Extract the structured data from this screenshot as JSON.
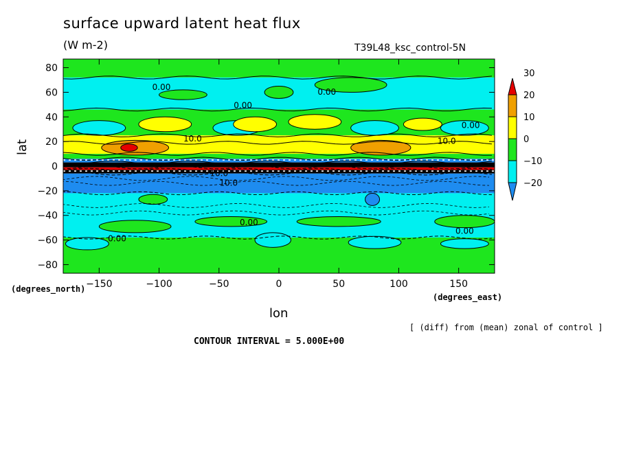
{
  "chart_data": {
    "type": "heatmap",
    "title": "surface upward latent heat flux",
    "units_label": "(W m-2)",
    "run_label": "T39L48_ksc_control-5N",
    "xlabel": "lon",
    "ylabel": "lat",
    "x_units_label": "(degrees_east)",
    "y_units_label": "(degrees_north)",
    "note": "[ (diff) from (mean) zonal of control ]",
    "contour_interval_label": "CONTOUR INTERVAL = 5.000E+00",
    "xlim": [
      -180,
      180
    ],
    "ylim": [
      -87,
      87
    ],
    "x_ticks": [
      -150,
      -100,
      -50,
      0,
      50,
      100,
      150
    ],
    "x_tick_labels": [
      "−150",
      "−100",
      "−50",
      "0",
      "50",
      "100",
      "150"
    ],
    "y_ticks": [
      80,
      60,
      40,
      20,
      0,
      -20,
      -40,
      -60,
      -80
    ],
    "y_tick_labels": [
      "80",
      "60",
      "40",
      "20",
      "0",
      "−20",
      "−40",
      "−60",
      "−80"
    ],
    "colorbar": {
      "levels": [
        -20,
        -10,
        0,
        10,
        20,
        30
      ],
      "labels": [
        "−20",
        "−10",
        "0",
        "10",
        "20",
        "30"
      ],
      "colors": [
        "#1e8cf0",
        "#00f0f0",
        "#1ee61e",
        "#ffff00",
        "#f0a000",
        "#e60000"
      ]
    },
    "zonal_bands": [
      {
        "lat_from": 87,
        "lat_to": 72,
        "fill": "#1ee61e"
      },
      {
        "lat_from": 72,
        "lat_to": 46,
        "fill": "#00f0f0"
      },
      {
        "lat_from": 46,
        "lat_to": 25,
        "fill": "#1ee61e"
      },
      {
        "lat_from": 25,
        "lat_to": 19,
        "fill": "#ffff00"
      },
      {
        "lat_from": 19,
        "lat_to": 10,
        "fill": "#ffff00"
      },
      {
        "lat_from": 10,
        "lat_to": 6,
        "fill": "#1ee61e"
      },
      {
        "lat_from": 6,
        "lat_to": 3,
        "fill": "#1e8cf0"
      },
      {
        "lat_from": 3,
        "lat_to": -1,
        "fill": "#000000"
      },
      {
        "lat_from": -1,
        "lat_to": -3,
        "fill": "#e60000"
      },
      {
        "lat_from": -3,
        "lat_to": -6,
        "fill": "#000000"
      },
      {
        "lat_from": -6,
        "lat_to": -22,
        "fill": "#1e8cf0"
      },
      {
        "lat_from": -22,
        "lat_to": -58,
        "fill": "#00f0f0"
      },
      {
        "lat_from": -58,
        "lat_to": -87,
        "fill": "#1ee61e"
      }
    ],
    "blobs": [
      {
        "lon": -120,
        "lat": 15,
        "rlon": 28,
        "rlat": 6,
        "fill": "#f0a000"
      },
      {
        "lon": -125,
        "lat": 15,
        "rlon": 7,
        "rlat": 3,
        "fill": "#e60000"
      },
      {
        "lon": 85,
        "lat": 15,
        "rlon": 25,
        "rlat": 6,
        "fill": "#f0a000"
      },
      {
        "lon": -150,
        "lat": 31,
        "rlon": 22,
        "rlat": 6,
        "fill": "#00f0f0"
      },
      {
        "lon": -35,
        "lat": 31,
        "rlon": 20,
        "rlat": 6,
        "fill": "#00f0f0"
      },
      {
        "lon": 80,
        "lat": 31,
        "rlon": 20,
        "rlat": 6,
        "fill": "#00f0f0"
      },
      {
        "lon": 155,
        "lat": 31,
        "rlon": 20,
        "rlat": 6,
        "fill": "#00f0f0"
      },
      {
        "lon": -95,
        "lat": 34,
        "rlon": 22,
        "rlat": 6,
        "fill": "#ffff00"
      },
      {
        "lon": -20,
        "lat": 34,
        "rlon": 18,
        "rlat": 6,
        "fill": "#ffff00"
      },
      {
        "lon": 30,
        "lat": 36,
        "rlon": 22,
        "rlat": 6,
        "fill": "#ffff00"
      },
      {
        "lon": 120,
        "lat": 34,
        "rlon": 16,
        "rlat": 5,
        "fill": "#ffff00"
      },
      {
        "lon": 0,
        "lat": 60,
        "rlon": 12,
        "rlat": 5,
        "fill": "#1ee61e"
      },
      {
        "lon": 60,
        "lat": 66,
        "rlon": 30,
        "rlat": 6,
        "fill": "#1ee61e"
      },
      {
        "lon": -80,
        "lat": 58,
        "rlon": 20,
        "rlat": 4,
        "fill": "#1ee61e"
      },
      {
        "lon": -105,
        "lat": -27,
        "rlon": 12,
        "rlat": 4,
        "fill": "#1ee61e"
      },
      {
        "lon": -120,
        "lat": -49,
        "rlon": 30,
        "rlat": 5,
        "fill": "#1ee61e"
      },
      {
        "lon": -40,
        "lat": -45,
        "rlon": 30,
        "rlat": 4,
        "fill": "#1ee61e"
      },
      {
        "lon": 50,
        "lat": -45,
        "rlon": 35,
        "rlat": 4,
        "fill": "#1ee61e"
      },
      {
        "lon": 155,
        "lat": -45,
        "rlon": 25,
        "rlat": 5,
        "fill": "#1ee61e"
      },
      {
        "lon": 78,
        "lat": -27,
        "rlon": 6,
        "rlat": 5,
        "fill": "#1e8cf0"
      },
      {
        "lon": -5,
        "lat": -60,
        "rlon": 15,
        "rlat": 6,
        "fill": "#00f0f0"
      },
      {
        "lon": 80,
        "lat": -62,
        "rlon": 22,
        "rlat": 5,
        "fill": "#00f0f0"
      },
      {
        "lon": -160,
        "lat": -63,
        "rlon": 18,
        "rlat": 5,
        "fill": "#00f0f0"
      },
      {
        "lon": 155,
        "lat": -63,
        "rlon": 20,
        "rlat": 4,
        "fill": "#00f0f0"
      }
    ],
    "contour_labels": [
      {
        "text": "0.00",
        "lon": -98,
        "lat": 62
      },
      {
        "text": "0.00",
        "lon": -30,
        "lat": 47
      },
      {
        "text": "0.00",
        "lon": 40,
        "lat": 58
      },
      {
        "text": "0.00",
        "lon": 160,
        "lat": 31
      },
      {
        "text": "10.0",
        "lon": -72,
        "lat": 20
      },
      {
        "text": "10.0",
        "lon": 140,
        "lat": 18
      },
      {
        "text": "10.0",
        "lon": -50,
        "lat": -8
      },
      {
        "text": "10.0",
        "lon": -42,
        "lat": -16
      },
      {
        "text": "0.00",
        "lon": -25,
        "lat": -48
      },
      {
        "text": "0.00",
        "lon": -135,
        "lat": -61
      },
      {
        "text": "0.00",
        "lon": 155,
        "lat": -55
      }
    ]
  }
}
